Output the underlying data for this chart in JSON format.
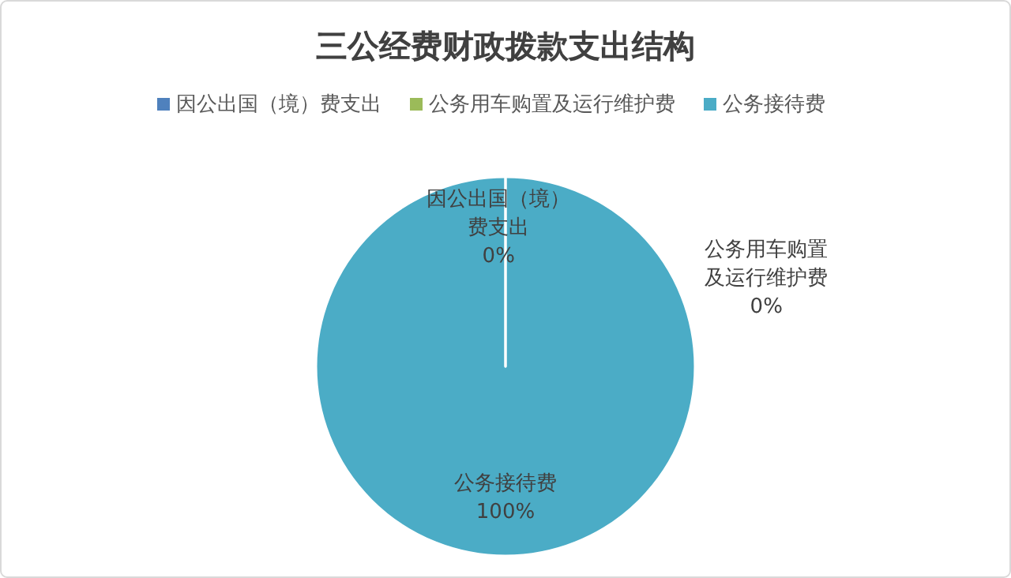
{
  "chart_data": {
    "type": "pie",
    "title": "三公经费财政拨款支出结构",
    "categories": [
      "因公出国（境）费支出",
      "公务用车购置及运行维护费",
      "公务接待费"
    ],
    "values": [
      0,
      0,
      100
    ],
    "colors": [
      "#4f81bd",
      "#9bbb59",
      "#4bacc6"
    ],
    "value_labels": [
      "0%",
      "0%",
      "100%"
    ],
    "legend": "top"
  }
}
